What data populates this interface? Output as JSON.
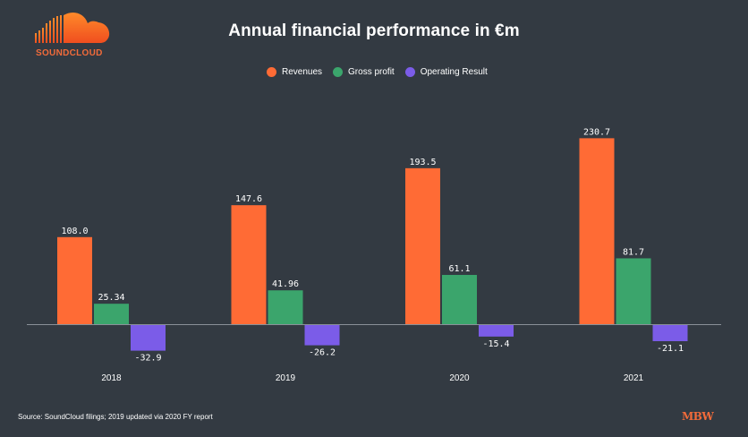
{
  "logo": {
    "icon": "soundcloud-cloud-icon",
    "text": "SOUNDCLOUD",
    "color": "#f26b3a"
  },
  "title": "Annual financial performance in €m",
  "legend": [
    {
      "label": "Revenues",
      "color": "#ff6b35"
    },
    {
      "label": "Gross profit",
      "color": "#3ba56c"
    },
    {
      "label": "Operating Result",
      "color": "#7b5ce8"
    }
  ],
  "chart_data": {
    "type": "bar",
    "title": "Annual financial performance in €m",
    "xlabel": "",
    "ylabel": "",
    "ylim": [
      -40,
      240
    ],
    "grid": false,
    "legend_position": "top-center",
    "categories": [
      "2018",
      "2019",
      "2020",
      "2021"
    ],
    "series": [
      {
        "name": "Revenues",
        "color": "#ff6b35",
        "values": [
          108.0,
          147.6,
          193.5,
          230.7
        ],
        "labels": [
          "108.0",
          "147.6",
          "193.5",
          "230.7"
        ]
      },
      {
        "name": "Gross profit",
        "color": "#3ba56c",
        "values": [
          25.34,
          41.96,
          61.1,
          81.7
        ],
        "labels": [
          "25.34",
          "41.96",
          "61.1",
          "81.7"
        ]
      },
      {
        "name": "Operating Result",
        "color": "#7b5ce8",
        "values": [
          -32.9,
          -26.2,
          -15.4,
          -21.1
        ],
        "labels": [
          "-32.9",
          "-26.2",
          "-15.4",
          "-21.1"
        ]
      }
    ]
  },
  "footer": {
    "source": "Source: SoundCloud filings; 2019 updated via 2020 FY report",
    "brand": "MBW"
  },
  "colors": {
    "background": "#333a42",
    "axis": "#8a9098",
    "text": "#ffffff"
  }
}
